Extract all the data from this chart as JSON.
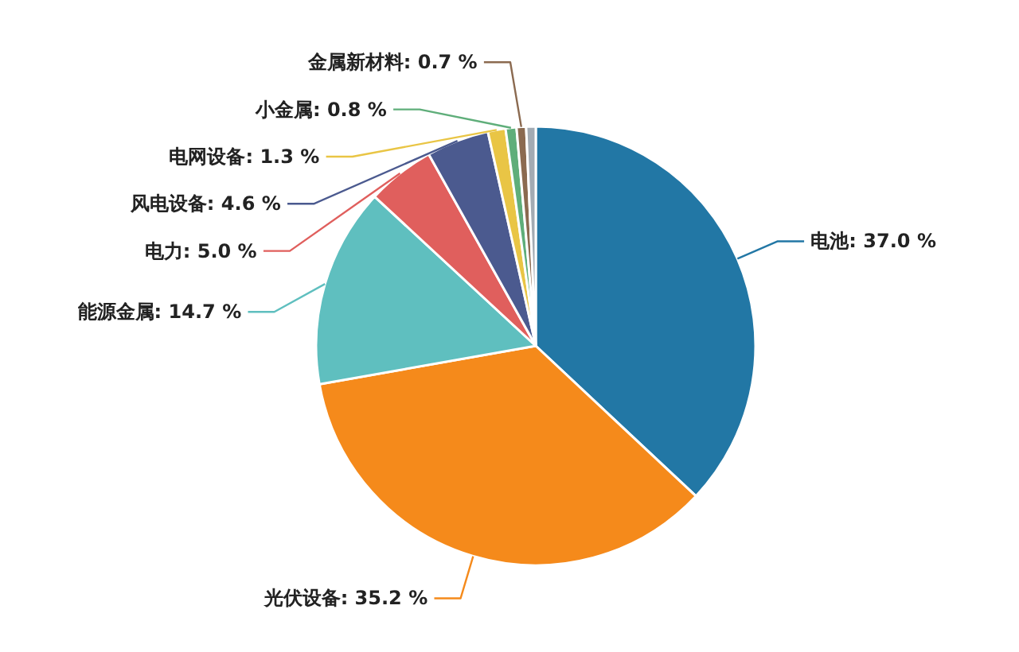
{
  "chart_data": {
    "type": "pie",
    "categories": [
      "电池",
      "光伏设备",
      "能源金属",
      "电力",
      "风电设备",
      "电网设备",
      "小金属",
      "金属新材料",
      null
    ],
    "values": [
      37.0,
      35.2,
      14.7,
      5.0,
      4.6,
      1.3,
      0.8,
      0.7,
      0.7
    ],
    "value_labels": [
      "37.0 %",
      "35.2 %",
      "14.7 %",
      "5.0 %",
      "4.6 %",
      "1.3 %",
      "0.8 %",
      "0.7 %",
      null
    ],
    "colors": [
      "#2277a5",
      "#f58a1b",
      "#5fbfbf",
      "#e05f5d",
      "#4b5a8f",
      "#e9c545",
      "#5fae7a",
      "#8b6a50",
      "#a3abb3"
    ]
  }
}
